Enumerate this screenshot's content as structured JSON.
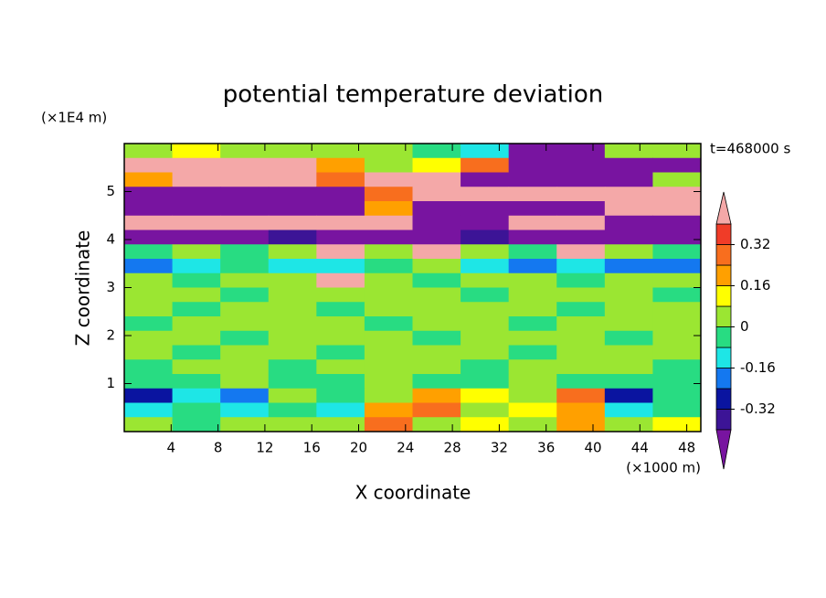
{
  "chart_data": {
    "type": "contour",
    "title": "potential temperature deviation",
    "xlabel": "X coordinate",
    "ylabel": "Z coordinate",
    "xunit": "(×1000 m)",
    "yunit": "(×1E4 m)",
    "annotation": "t=468000 s",
    "xlim": [
      0,
      49.2
    ],
    "ylim": [
      0,
      6
    ],
    "xticks": [
      4,
      8,
      12,
      16,
      20,
      24,
      28,
      32,
      36,
      40,
      44,
      48
    ],
    "yticks": [
      1,
      2,
      3,
      4,
      5
    ],
    "levels": [
      -0.4,
      -0.32,
      -0.24,
      -0.16,
      -0.08,
      0,
      0.08,
      0.16,
      0.24,
      0.32,
      0.4
    ],
    "colors": [
      "#7814a0",
      "#3c1496",
      "#0a14a0",
      "#1478f0",
      "#1ee6e6",
      "#28dc82",
      "#9be632",
      "#ffff00",
      "#ffa000",
      "#f86e1e",
      "#f03c28",
      "#f4a8a8"
    ],
    "colorbar_ticks": [
      0.32,
      0.16,
      0,
      -0.16,
      -0.32
    ],
    "z": [
      [
        0,
        0.1,
        0.05,
        0,
        0,
        0,
        -0.05,
        -0.1,
        -0.45,
        -0.45,
        0.05,
        0
      ],
      [
        0.45,
        0.45,
        0.45,
        0.45,
        0.2,
        0.05,
        0.1,
        0.3,
        -0.45,
        -0.45,
        -0.45,
        -0.45
      ],
      [
        0.2,
        0.45,
        0.45,
        0.45,
        0.3,
        0.45,
        0.45,
        -0.45,
        -0.45,
        -0.45,
        -0.45,
        0
      ],
      [
        -0.45,
        -0.45,
        -0.45,
        -0.45,
        -0.45,
        0.3,
        0.45,
        0.45,
        0.45,
        0.45,
        0.45,
        0.45
      ],
      [
        -0.45,
        -0.45,
        -0.45,
        -0.45,
        -0.45,
        0.2,
        -0.45,
        -0.45,
        -0.45,
        -0.45,
        0.45,
        0.45
      ],
      [
        0.45,
        0.45,
        0.45,
        0.45,
        0.45,
        0.45,
        -0.45,
        -0.45,
        0.45,
        0.45,
        -0.45,
        -0.45
      ],
      [
        -0.45,
        -0.45,
        -0.45,
        -0.35,
        -0.45,
        -0.45,
        -0.45,
        -0.35,
        -0.45,
        -0.45,
        -0.45,
        -0.45
      ],
      [
        -0.05,
        0.05,
        -0.05,
        0.05,
        0.45,
        0.05,
        0.45,
        0.05,
        -0.05,
        0.45,
        0.05,
        -0.05
      ],
      [
        -0.2,
        -0.1,
        -0.05,
        -0.1,
        -0.1,
        -0.05,
        0.05,
        -0.1,
        -0.2,
        -0.1,
        -0.2,
        -0.2
      ],
      [
        0.05,
        -0.05,
        0.05,
        0.05,
        0.45,
        0.05,
        -0.05,
        0.05,
        0.05,
        -0.05,
        0.05,
        0.05
      ],
      [
        0.05,
        0.05,
        -0.05,
        0.05,
        0.05,
        0.05,
        0.05,
        -0.05,
        0.05,
        0.05,
        0.05,
        -0.05
      ],
      [
        0.05,
        -0.05,
        0.05,
        0.05,
        -0.05,
        0.05,
        0.05,
        0.05,
        0.05,
        -0.05,
        0.05,
        0.05
      ],
      [
        -0.05,
        0.05,
        0.05,
        0.05,
        0.05,
        -0.05,
        0.05,
        0.05,
        -0.05,
        0.05,
        0.05,
        0.05
      ],
      [
        0.05,
        0.05,
        -0.05,
        0.05,
        0.05,
        0.05,
        -0.05,
        0.05,
        0.05,
        0.05,
        -0.05,
        0.05
      ],
      [
        0.05,
        -0.05,
        0.05,
        0.05,
        -0.05,
        0.05,
        0.05,
        0.05,
        -0.05,
        0.05,
        0.05,
        0.05
      ],
      [
        -0.05,
        0.05,
        0.05,
        -0.05,
        0.05,
        0.05,
        0.05,
        -0.05,
        0.05,
        0.05,
        0.05,
        -0.05
      ],
      [
        -0.05,
        -0.05,
        0.05,
        -0.05,
        -0.05,
        0.05,
        -0.05,
        -0.05,
        0.05,
        -0.05,
        -0.05,
        -0.05
      ],
      [
        -0.3,
        -0.1,
        -0.2,
        0.05,
        -0.05,
        0.05,
        0.2,
        0.1,
        0.05,
        0.3,
        -0.3,
        -0.05
      ],
      [
        -0.1,
        -0.05,
        -0.1,
        -0.05,
        -0.1,
        0.2,
        0.3,
        0.05,
        0.1,
        0.2,
        -0.1,
        -0.05
      ],
      [
        0.05,
        -0.05,
        0.05,
        0.05,
        0.05,
        0.3,
        0.05,
        0.1,
        0.05,
        0.2,
        0.05,
        0.1
      ]
    ]
  }
}
